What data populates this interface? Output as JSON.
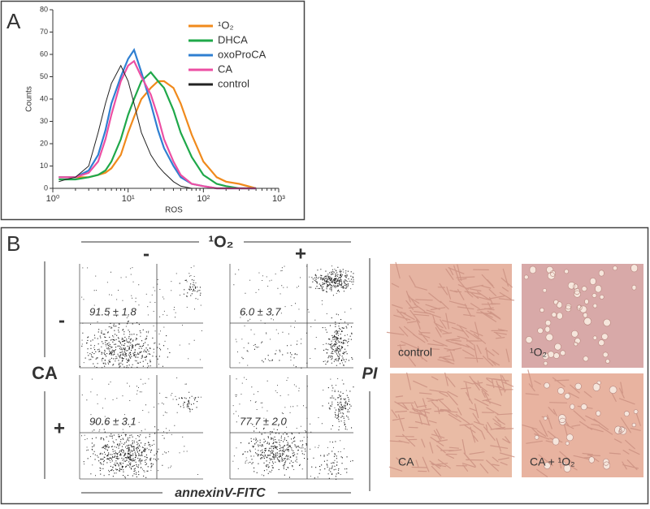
{
  "panel_labels": [
    "A",
    "B"
  ],
  "chart_data": {
    "type": "line",
    "xlabel": "ROS",
    "ylabel": "Counts",
    "xscale": "log",
    "xlim": [
      1,
      1000
    ],
    "xticks": [
      {
        "value": 1,
        "label": "10⁰"
      },
      {
        "value": 10,
        "label": "10¹"
      },
      {
        "value": 100,
        "label": "10²"
      },
      {
        "value": 1000,
        "label": "10³"
      }
    ],
    "ylim": [
      0,
      80
    ],
    "yticks": [
      0,
      10,
      20,
      30,
      40,
      50,
      60,
      70,
      80
    ],
    "legend": "upper right",
    "x": [
      1.2,
      1.5,
      2,
      3,
      4,
      5,
      6,
      8,
      10,
      12,
      15,
      20,
      25,
      30,
      40,
      50,
      70,
      100,
      150,
      200,
      300,
      500
    ],
    "series": [
      {
        "name": "¹O₂",
        "color": "#f08a1c",
        "values": [
          5,
          5,
          5,
          5,
          6,
          7,
          9,
          15,
          25,
          32,
          40,
          45,
          48,
          48,
          45,
          38,
          24,
          12,
          5,
          3,
          2,
          0
        ]
      },
      {
        "name": "DHCA",
        "color": "#1fa84a",
        "values": [
          4,
          4,
          4,
          5,
          6,
          8,
          12,
          22,
          33,
          40,
          48,
          52,
          48,
          45,
          35,
          25,
          14,
          6,
          2,
          1,
          0,
          0
        ]
      },
      {
        "name": "oxoProCA",
        "color": "#2f7fd1",
        "values": [
          5,
          5,
          5,
          8,
          15,
          26,
          38,
          50,
          58,
          62,
          52,
          38,
          26,
          18,
          10,
          5,
          2,
          1,
          0,
          0,
          0,
          0
        ]
      },
      {
        "name": "CA",
        "color": "#ec4fa3",
        "values": [
          5,
          5,
          5,
          7,
          12,
          22,
          33,
          48,
          55,
          57,
          50,
          42,
          32,
          22,
          12,
          6,
          2,
          1,
          0,
          0,
          0,
          0
        ]
      },
      {
        "name": "control",
        "color": "#222222",
        "values": [
          3,
          4,
          5,
          10,
          25,
          38,
          47,
          55,
          48,
          38,
          25,
          15,
          10,
          7,
          3,
          1,
          0,
          0,
          0,
          0,
          0,
          0
        ]
      }
    ]
  },
  "flow_cytometry": {
    "column_header": "¹O₂",
    "column_labels": [
      "-",
      "+"
    ],
    "row_header": "CA",
    "row_labels": [
      "-",
      "+"
    ],
    "y_axis_label": "PI",
    "x_axis_label": "annexinV-FITC",
    "viable_percent": [
      "91.5 ± 1.8",
      "6.0 ± 3.7",
      "90.6 ± 3.1",
      "77.7 ± 2.0"
    ]
  },
  "micrographs": {
    "labels": [
      "control",
      "¹O₂",
      "CA",
      "CA + ¹O₂"
    ]
  }
}
